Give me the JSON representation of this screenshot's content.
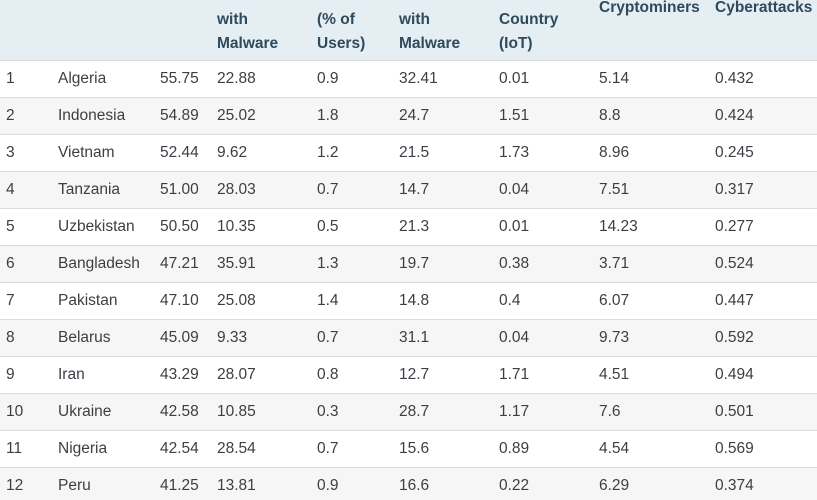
{
  "headers": [
    [
      ""
    ],
    [
      ""
    ],
    [
      ""
    ],
    [
      "with",
      "Malware"
    ],
    [
      "(% of",
      "Users)"
    ],
    [
      "with",
      "Malware"
    ],
    [
      "Country",
      "(IoT)"
    ],
    [
      "Cryptominers"
    ],
    [
      "Cyberattacks"
    ]
  ],
  "rows": [
    [
      "1",
      "Algeria",
      "55.75",
      "22.88",
      "0.9",
      "32.41",
      "0.01",
      "5.14",
      "0.432"
    ],
    [
      "2",
      "Indonesia",
      "54.89",
      "25.02",
      "1.8",
      "24.7",
      "1.51",
      "8.8",
      "0.424"
    ],
    [
      "3",
      "Vietnam",
      "52.44",
      "9.62",
      "1.2",
      "21.5",
      "1.73",
      "8.96",
      "0.245"
    ],
    [
      "4",
      "Tanzania",
      "51.00",
      "28.03",
      "0.7",
      "14.7",
      "0.04",
      "7.51",
      "0.317"
    ],
    [
      "5",
      "Uzbekistan",
      "50.50",
      "10.35",
      "0.5",
      "21.3",
      "0.01",
      "14.23",
      "0.277"
    ],
    [
      "6",
      "Bangladesh",
      "47.21",
      "35.91",
      "1.3",
      "19.7",
      "0.38",
      "3.71",
      "0.524"
    ],
    [
      "7",
      "Pakistan",
      "47.10",
      "25.08",
      "1.4",
      "14.8",
      "0.4",
      "6.07",
      "0.447"
    ],
    [
      "8",
      "Belarus",
      "45.09",
      "9.33",
      "0.7",
      "31.1",
      "0.04",
      "9.73",
      "0.592"
    ],
    [
      "9",
      "Iran",
      "43.29",
      "28.07",
      "0.8",
      "12.7",
      "1.71",
      "4.51",
      "0.494"
    ],
    [
      "10",
      "Ukraine",
      "42.58",
      "10.85",
      "0.3",
      "28.7",
      "1.17",
      "7.6",
      "0.501"
    ],
    [
      "11",
      "Nigeria",
      "42.54",
      "28.54",
      "0.7",
      "15.6",
      "0.89",
      "4.54",
      "0.569"
    ],
    [
      "12",
      "Peru",
      "41.25",
      "13.81",
      "0.9",
      "16.6",
      "0.22",
      "6.29",
      "0.374"
    ]
  ]
}
